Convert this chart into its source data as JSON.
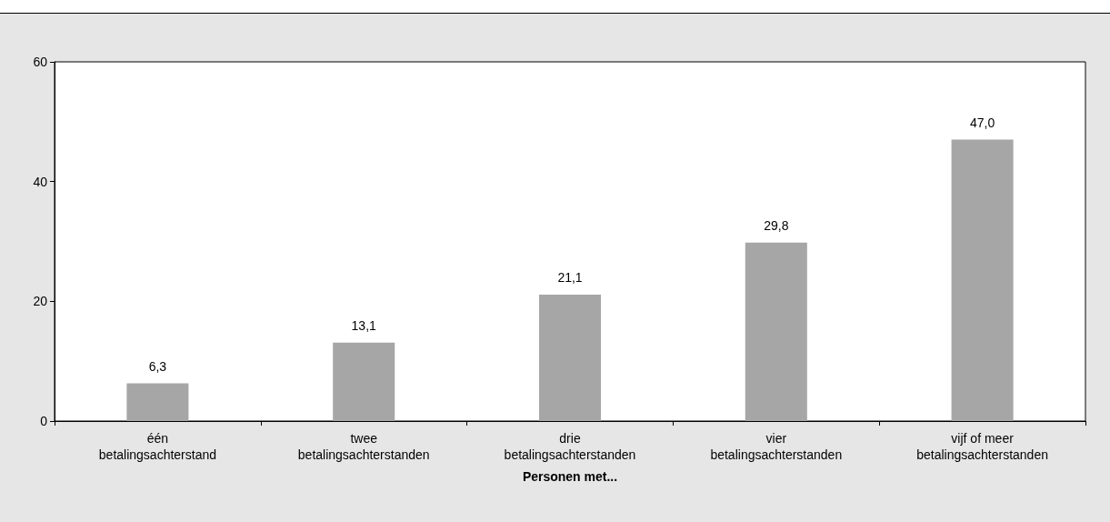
{
  "chart_data": {
    "type": "bar",
    "xlabel": "Personen met...",
    "categories": [
      "één\nbetalingsachterstand",
      "twee\nbetalingsachterstanden",
      "drie\nbetalingsachterstanden",
      "vier\nbetalingsachterstanden",
      "vijf of meer\nbetalingsachterstanden"
    ],
    "values": [
      6.3,
      13.1,
      21.1,
      29.8,
      47.0
    ],
    "value_labels": [
      "6,3",
      "13,1",
      "21,1",
      "29,8",
      "47,0"
    ],
    "color": "#a6a6a6",
    "ylim": [
      0,
      60
    ],
    "yticks": [
      0,
      20,
      40,
      60
    ],
    "grid": false
  }
}
